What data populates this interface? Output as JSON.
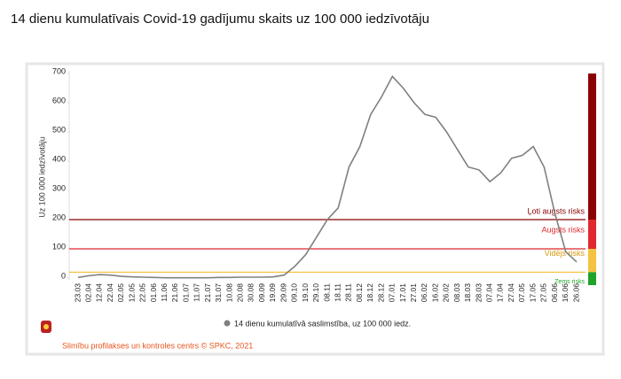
{
  "chart_data": {
    "type": "line",
    "title": "14 dienu kumulatīvais Covid-19 gadījumu skaits uz 100 000 iedzīvotāju",
    "ylabel": "Uz 100 000 iedzīvotāju",
    "source": "Slimību profilakses un kontroles centrs © SPKC, 2021",
    "categories": [
      "23.03",
      "02.04",
      "12.04",
      "22.04",
      "02.05",
      "12.05",
      "22.05",
      "01.06",
      "11.06",
      "21.06",
      "01.07",
      "11.07",
      "21.07",
      "31.07",
      "10.08",
      "20.08",
      "30.08",
      "09.09",
      "19.09",
      "29.09",
      "09.10",
      "19.10",
      "29.10",
      "08.11",
      "18.11",
      "28.11",
      "08.12",
      "18.12",
      "28.12",
      "07.01",
      "17.01",
      "27.01",
      "06.02",
      "16.02",
      "26.02",
      "08.03",
      "18.03",
      "28.03",
      "07.04",
      "17.04",
      "27.04",
      "07.05",
      "17.05",
      "27.05",
      "06.06",
      "16.06",
      "26.06"
    ],
    "series": [
      {
        "name": "14 dienu kumulatīvā saslimstība, uz 100 000 iedz.",
        "color": "#808080",
        "values": [
          2,
          8,
          12,
          10,
          6,
          4,
          3,
          2,
          1,
          1,
          1,
          1,
          1,
          2,
          2,
          3,
          3,
          3,
          4,
          10,
          40,
          80,
          140,
          200,
          240,
          380,
          450,
          560,
          620,
          690,
          650,
          600,
          560,
          550,
          500,
          440,
          380,
          370,
          330,
          360,
          410,
          420,
          450,
          380,
          220,
          90,
          55
        ]
      }
    ],
    "thresholds": [
      {
        "value": 200,
        "label": "Ļoti augsts risks",
        "color": "#8b0000"
      },
      {
        "value": 100,
        "label": "Augsts risks",
        "color": "#e0282e"
      },
      {
        "value": 20,
        "label": "Vidējs risks",
        "color": "#f5c242"
      },
      {
        "value": 0,
        "label": "Zems risks",
        "color": "#1fa32a"
      }
    ],
    "ylim": [
      0,
      700
    ],
    "yticks": [
      0,
      100,
      200,
      300,
      400,
      500,
      600,
      700
    ]
  }
}
